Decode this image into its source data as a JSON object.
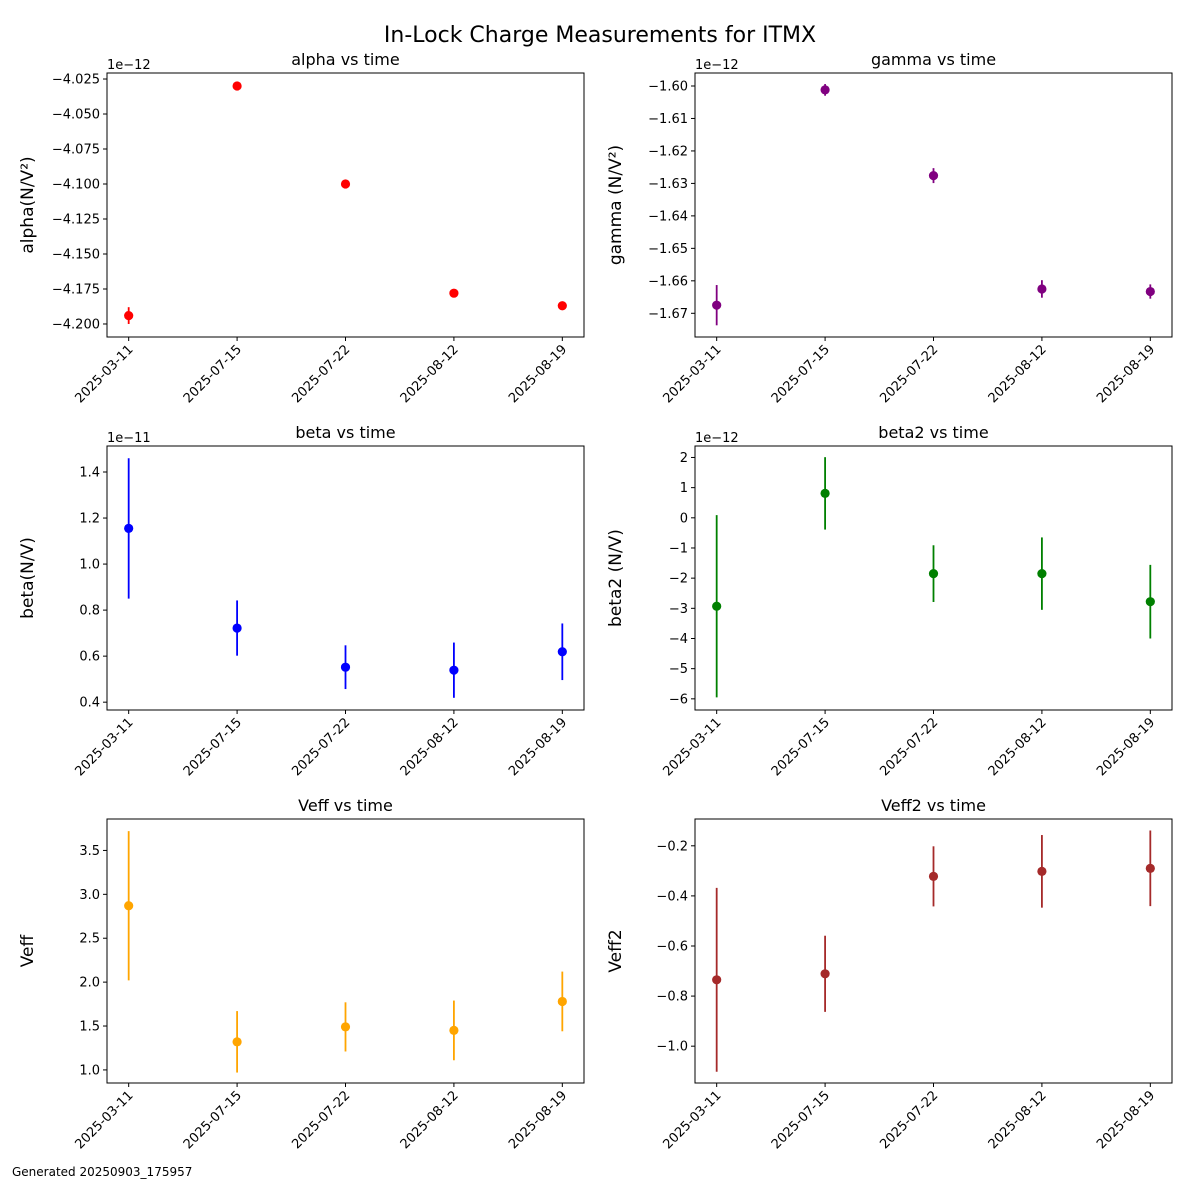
{
  "title": "In-Lock Charge Measurements for ITMX",
  "footer": "Generated 20250903_175957",
  "chart_data": [
    {
      "type": "scatter",
      "title": "alpha vs time",
      "ylabel": "alpha(N/V²)",
      "offset_label": "1e−12",
      "color": "#ff0000",
      "categories": [
        "2025-03-11",
        "2025-07-15",
        "2025-07-22",
        "2025-08-12",
        "2025-08-19"
      ],
      "values": [
        -4.194,
        -4.03,
        -4.1,
        -4.178,
        -4.187
      ],
      "errors": [
        0.006,
        0.0008,
        0.0012,
        0.001,
        0.0008
      ],
      "yticks": [
        -4.2,
        -4.175,
        -4.15,
        -4.125,
        -4.1,
        -4.075,
        -4.05,
        -4.025
      ],
      "ytick_labels": [
        "−4.200",
        "−4.175",
        "−4.150",
        "−4.125",
        "−4.100",
        "−4.075",
        "−4.050",
        "−4.025"
      ],
      "ylim": [
        -4.2093,
        -4.0207
      ]
    },
    {
      "type": "scatter",
      "title": "gamma vs time",
      "ylabel": "gamma (N/V²)",
      "offset_label": "1e−12",
      "color": "#800080",
      "categories": [
        "2025-03-11",
        "2025-07-15",
        "2025-07-22",
        "2025-08-12",
        "2025-08-19"
      ],
      "values": [
        -1.6675,
        -1.6012,
        -1.6276,
        -1.6625,
        -1.6633
      ],
      "errors": [
        0.0062,
        0.0018,
        0.0023,
        0.0027,
        0.0022
      ],
      "yticks": [
        -1.67,
        -1.66,
        -1.65,
        -1.64,
        -1.63,
        -1.62,
        -1.61,
        -1.6
      ],
      "ytick_labels": [
        "−1.67",
        "−1.66",
        "−1.65",
        "−1.64",
        "−1.63",
        "−1.62",
        "−1.61",
        "−1.60"
      ],
      "ylim": [
        -1.6773,
        -1.596
      ]
    },
    {
      "type": "scatter",
      "title": "beta vs time",
      "ylabel": "beta(N/V)",
      "offset_label": "1e−11",
      "color": "#0000ff",
      "categories": [
        "2025-03-11",
        "2025-07-15",
        "2025-07-22",
        "2025-08-12",
        "2025-08-19"
      ],
      "values": [
        1.155,
        0.722,
        0.552,
        0.539,
        0.619
      ],
      "errors": [
        0.305,
        0.12,
        0.095,
        0.12,
        0.123
      ],
      "yticks": [
        0.4,
        0.6,
        0.8,
        1.0,
        1.2,
        1.4
      ],
      "ytick_labels": [
        "0.4",
        "0.6",
        "0.8",
        "1.0",
        "1.2",
        "1.4"
      ],
      "ylim": [
        0.366,
        1.513
      ]
    },
    {
      "type": "scatter",
      "title": "beta2 vs time",
      "ylabel": "beta2 (N/V)",
      "offset_label": "1e−12",
      "color": "#008000",
      "categories": [
        "2025-03-11",
        "2025-07-15",
        "2025-07-22",
        "2025-08-12",
        "2025-08-19"
      ],
      "values": [
        -2.93,
        0.81,
        -1.85,
        -1.85,
        -2.78
      ],
      "errors": [
        3.02,
        1.2,
        0.94,
        1.2,
        1.22
      ],
      "yticks": [
        -6,
        -5,
        -4,
        -3,
        -2,
        -1,
        0,
        1,
        2
      ],
      "ytick_labels": [
        "−6",
        "−5",
        "−4",
        "−3",
        "−2",
        "−1",
        "0",
        "1",
        "2"
      ],
      "ylim": [
        -6.37,
        2.38
      ]
    },
    {
      "type": "scatter",
      "title": "Veff vs time",
      "ylabel": "Veff",
      "offset_label": "",
      "color": "#ffa500",
      "categories": [
        "2025-03-11",
        "2025-07-15",
        "2025-07-22",
        "2025-08-12",
        "2025-08-19"
      ],
      "values": [
        2.87,
        1.32,
        1.49,
        1.45,
        1.78
      ],
      "errors": [
        0.85,
        0.35,
        0.28,
        0.34,
        0.34
      ],
      "yticks": [
        1.0,
        1.5,
        2.0,
        2.5,
        3.0,
        3.5
      ],
      "ytick_labels": [
        "1.0",
        "1.5",
        "2.0",
        "2.5",
        "3.0",
        "3.5"
      ],
      "ylim": [
        0.851,
        3.858
      ]
    },
    {
      "type": "scatter",
      "title": "Veff2 vs time",
      "ylabel": "Veff2",
      "offset_label": "",
      "color": "#a52a2a",
      "categories": [
        "2025-03-11",
        "2025-07-15",
        "2025-07-22",
        "2025-08-12",
        "2025-08-19"
      ],
      "values": [
        -0.735,
        -0.711,
        -0.322,
        -0.302,
        -0.29
      ],
      "errors": [
        0.367,
        0.152,
        0.12,
        0.145,
        0.151
      ],
      "yticks": [
        -1.0,
        -0.8,
        -0.6,
        -0.4,
        -0.2
      ],
      "ytick_labels": [
        "−1.0",
        "−0.8",
        "−0.6",
        "−0.4",
        "−0.2"
      ],
      "ylim": [
        -1.147,
        -0.093
      ]
    }
  ]
}
